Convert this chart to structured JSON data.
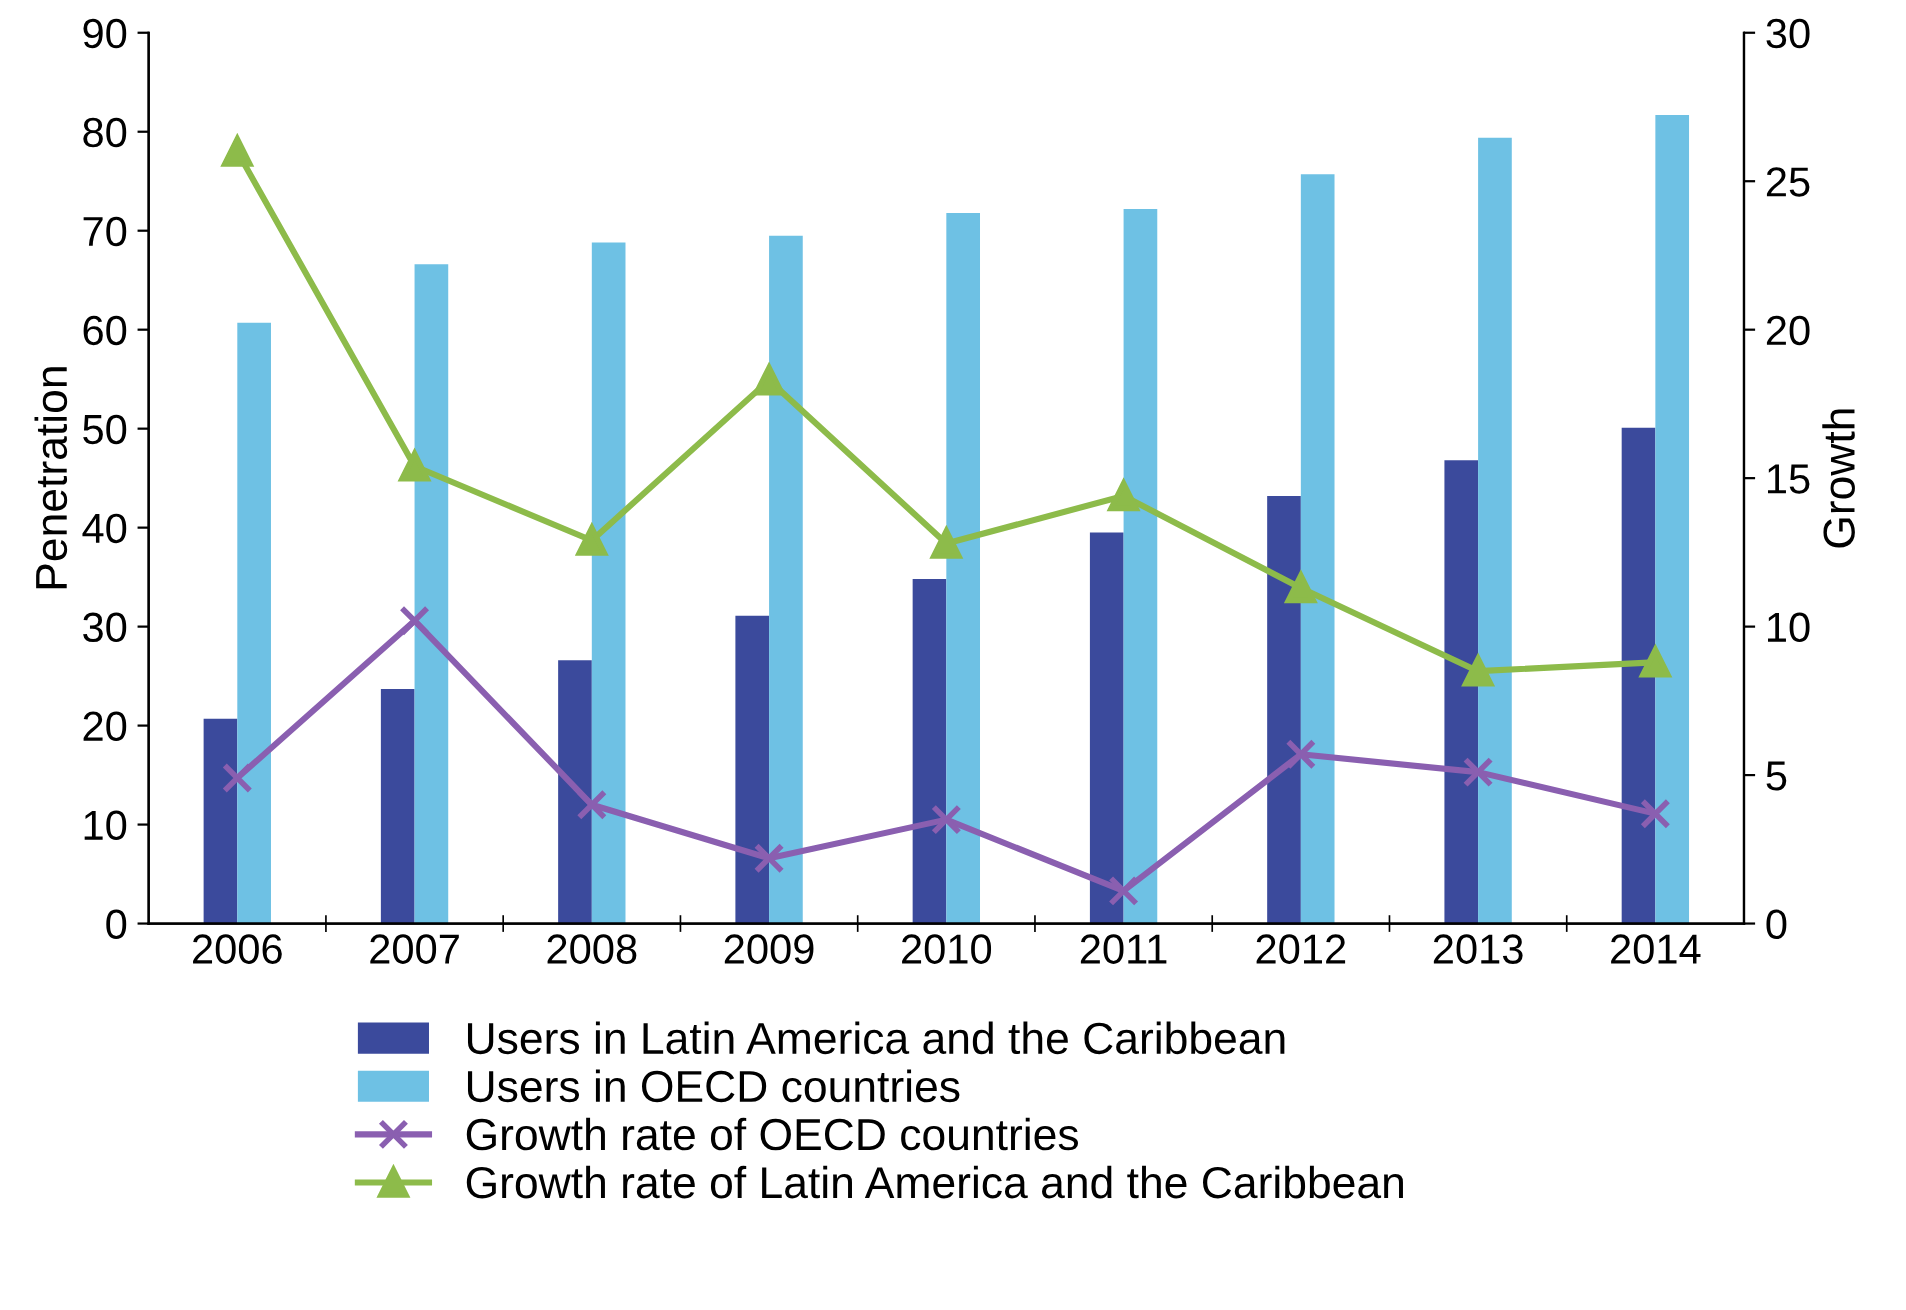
{
  "chart_data": {
    "type": "bar",
    "categories": [
      "2006",
      "2007",
      "2008",
      "2009",
      "2010",
      "2011",
      "2012",
      "2013",
      "2014"
    ],
    "ylabel": "Penetration",
    "y2label": "Growth",
    "ylim": [
      0,
      90
    ],
    "yticks": [
      0,
      10,
      20,
      30,
      40,
      50,
      60,
      70,
      80,
      90
    ],
    "y2lim": [
      0,
      30
    ],
    "y2ticks": [
      0,
      5,
      10,
      15,
      20,
      25,
      30
    ],
    "grid": false,
    "legend": "bottom",
    "series": [
      {
        "name": "Users in Latin America and the Caribbean",
        "color": "#3b4a9c",
        "values": [
          20.7,
          23.7,
          26.6,
          31.1,
          34.8,
          39.5,
          43.2,
          46.8,
          50.1
        ]
      },
      {
        "name": "Users in OECD countries",
        "color": "#6ec1e4",
        "values": [
          60.7,
          66.6,
          68.8,
          69.5,
          71.8,
          72.2,
          75.7,
          79.4,
          81.7
        ]
      },
      {
        "name": "Growth rate of OECD countries",
        "type": "line",
        "axis": "y2",
        "marker": "cross",
        "color": "#8a5fb0",
        "values": [
          4.9,
          10.2,
          4.0,
          2.2,
          3.5,
          1.1,
          5.7,
          5.1,
          3.7
        ]
      },
      {
        "name": "Growth rate of Latin America and the Caribbean",
        "type": "line",
        "axis": "y2",
        "marker": "triangle",
        "color": "#8dbb4a",
        "values": [
          26.0,
          15.4,
          12.9,
          18.3,
          12.8,
          14.4,
          11.3,
          8.5,
          8.8
        ]
      }
    ]
  }
}
